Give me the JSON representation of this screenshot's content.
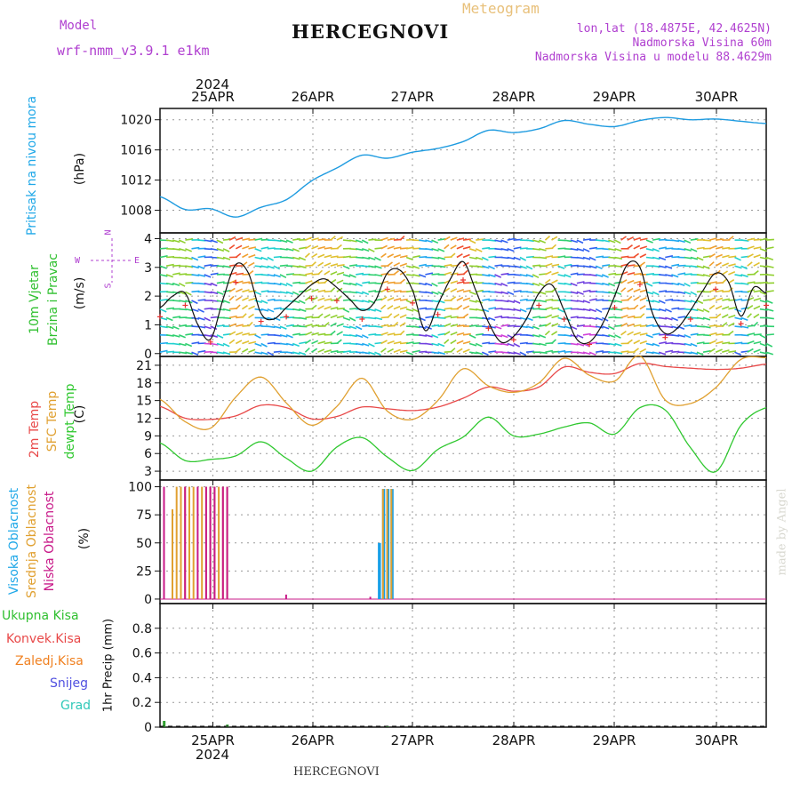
{
  "header": {
    "model_label": "Model",
    "model_name": "wrf-nmm_v3.9.1  e1km",
    "station": "HERCEGNOVI",
    "meteogram": "Meteogram",
    "lonlat": "lon,lat (18.4875E, 42.4625N)",
    "elev": "Nadmorska Visina 60m",
    "elev_model": "Nadmorska Visina u modelu 88.4629m"
  },
  "footer": {
    "station": "HERCEGNOVI",
    "watermark": "made by Angel"
  },
  "colors": {
    "pressure": "#1e9be0",
    "temp2m": "#e84848",
    "sfc": "#e0a030",
    "dewpt": "#30c830",
    "high": "#18a0e8",
    "mid": "#e0a030",
    "low": "#c81888",
    "wind_label_left": "#30b830",
    "wind_label_right": "#30b830",
    "compass": "#b040d0"
  },
  "chart_data": [
    {
      "type": "line",
      "panel": "pressure",
      "ylabel_main": "Pritisak na nivou mora",
      "ylabel_unit": "(hPa)",
      "year_top": "2024",
      "date_labels": [
        "25APR",
        "26APR",
        "27APR",
        "28APR",
        "29APR",
        "30APR"
      ],
      "yticks": [
        "1008",
        "1012",
        "1016",
        "1020"
      ],
      "ylim": [
        1005,
        1021.5
      ],
      "x": [
        0,
        6,
        12,
        18,
        24,
        30,
        36,
        42,
        48,
        54,
        60,
        66,
        72,
        78,
        84,
        90,
        96,
        102,
        108,
        114,
        120,
        126,
        132,
        138,
        144
      ],
      "series": [
        {
          "values": [
            1009.8,
            1008.1,
            1008.2,
            1007.1,
            1008.4,
            1009.4,
            1011.9,
            1013.6,
            1015.3,
            1014.9,
            1015.7,
            1016.2,
            1017.1,
            1018.6,
            1018.3,
            1018.8,
            1019.9,
            1019.4,
            1019.1,
            1019.9,
            1020.3,
            1020.0,
            1020.1,
            1019.8,
            1019.5
          ]
        }
      ]
    },
    {
      "type": "line",
      "panel": "wind",
      "ylabel_main": "10m Vjetar",
      "ylabel_sub": "Brzina i Pravac",
      "ylabel_unit": "(m/s)",
      "compass_top": "N",
      "compass_left": "W",
      "compass_right": "E",
      "compass_bottom": "S",
      "yticks": [
        "0",
        "1",
        "2",
        "3",
        "4"
      ],
      "ylim": [
        -0.1,
        4.2
      ],
      "x": [
        0,
        3,
        6,
        9,
        12,
        15,
        18,
        21,
        24,
        27,
        30,
        33,
        36,
        39,
        42,
        45,
        48,
        51,
        54,
        57,
        60,
        63,
        66,
        69,
        72,
        75,
        78,
        81,
        84,
        87,
        90,
        93,
        96,
        99,
        102,
        105,
        108,
        111,
        114,
        117,
        120,
        123,
        126,
        129,
        132,
        135,
        138,
        141,
        144
      ],
      "series": [
        {
          "name": "speed",
          "values": [
            1.6,
            2.0,
            2.1,
            1.0,
            0.5,
            1.9,
            3.1,
            2.8,
            1.4,
            1.2,
            1.6,
            2.0,
            2.4,
            2.6,
            2.3,
            1.9,
            1.5,
            1.8,
            2.8,
            2.9,
            2.2,
            0.8,
            1.7,
            2.6,
            3.2,
            2.2,
            1.1,
            0.4,
            0.6,
            1.2,
            2.1,
            2.4,
            1.5,
            0.5,
            0.4,
            1.0,
            2.0,
            3.1,
            3.0,
            1.4,
            0.7,
            0.9,
            1.5,
            2.2,
            2.8,
            2.5,
            1.3,
            2.3,
            2.1
          ]
        }
      ]
    },
    {
      "type": "line",
      "panel": "temperature",
      "ylabel_a": "2m Temp",
      "ylabel_b": "SFC Temp",
      "ylabel_c": "dewpt Temp",
      "ylabel_unit": "(C)",
      "yticks": [
        "3",
        "6",
        "9",
        "12",
        "15",
        "18",
        "21"
      ],
      "ylim": [
        1.5,
        22.5
      ],
      "x": [
        0,
        6,
        12,
        18,
        24,
        30,
        36,
        42,
        48,
        54,
        60,
        66,
        72,
        78,
        84,
        90,
        96,
        102,
        108,
        114,
        120,
        126,
        132,
        138,
        144
      ],
      "series": [
        {
          "name": "2m Temp",
          "values": [
            14.0,
            12.0,
            11.8,
            12.4,
            14.2,
            13.8,
            11.9,
            12.3,
            13.9,
            13.6,
            13.3,
            13.9,
            15.4,
            17.3,
            16.6,
            17.3,
            20.7,
            19.8,
            19.6,
            21.3,
            20.8,
            20.5,
            20.3,
            20.5,
            21.2
          ]
        },
        {
          "name": "SFC Temp",
          "values": [
            15.2,
            11.4,
            10.3,
            15.6,
            19.0,
            14.6,
            10.8,
            14.0,
            18.8,
            13.2,
            11.8,
            15.0,
            20.4,
            17.5,
            16.4,
            18.0,
            22.2,
            19.3,
            18.3,
            22.6,
            15.1,
            14.5,
            17.2,
            22.0,
            22.3
          ]
        },
        {
          "name": "dewpt Temp",
          "values": [
            7.8,
            4.8,
            5.0,
            5.6,
            8.0,
            5.2,
            3.0,
            7.1,
            8.7,
            5.4,
            3.1,
            6.7,
            8.8,
            12.2,
            9.0,
            9.3,
            10.5,
            11.2,
            9.3,
            13.8,
            13.4,
            7.0,
            2.9,
            10.8,
            13.8
          ]
        }
      ]
    },
    {
      "type": "bar",
      "panel": "clouds",
      "ylabel_a": "Visoka Oblacnost",
      "ylabel_b": "Srednja Oblacnost",
      "ylabel_c": "Niska Oblacnost",
      "ylabel_unit": "(%)",
      "yticks": [
        "0",
        "25",
        "50",
        "75",
        "100"
      ],
      "ylim": [
        -4,
        106
      ],
      "series": [
        {
          "name": "Visoka",
          "x": [
            52,
            53,
            54,
            55
          ],
          "values": [
            50,
            98,
            98,
            98
          ]
        },
        {
          "name": "Srednja",
          "x": [
            3,
            4,
            5,
            6,
            7,
            8,
            10,
            11,
            12,
            13,
            14,
            15,
            16,
            53,
            54,
            55
          ],
          "values": [
            80,
            100,
            100,
            100,
            100,
            100,
            100,
            100,
            100,
            100,
            100,
            100,
            100,
            98,
            98,
            98
          ]
        },
        {
          "name": "Niska",
          "x": [
            1,
            6,
            9,
            11,
            12,
            13,
            15,
            16,
            30,
            50
          ],
          "values": [
            100,
            100,
            100,
            100,
            100,
            100,
            100,
            100,
            4,
            2
          ]
        }
      ]
    },
    {
      "type": "bar",
      "panel": "precip",
      "ylabel_a": "Ukupna Kisa",
      "ylabel_b": "Konvek.Kisa",
      "ylabel_c": "Zaledj.Kisa",
      "ylabel_d": "Snijeg",
      "ylabel_e": "Grad",
      "ylabel_unit": "1hr Precip (mm)",
      "yticks": [
        "0",
        "0.2",
        "0.4",
        "0.6",
        "0.8"
      ],
      "ylim": [
        0,
        1.0
      ],
      "series": [
        {
          "name": "Ukupna Kisa",
          "x": [
            1,
            16,
            54
          ],
          "values": [
            0.05,
            0.02,
            0.01
          ]
        }
      ]
    }
  ],
  "bottom_axis": {
    "date_labels": [
      "25APR",
      "26APR",
      "27APR",
      "28APR",
      "29APR",
      "30APR"
    ],
    "year": "2024"
  }
}
